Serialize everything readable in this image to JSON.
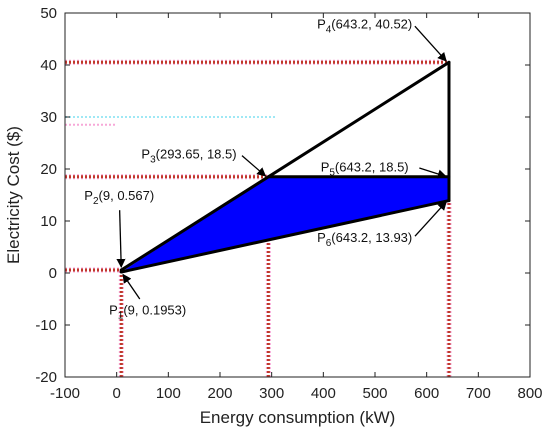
{
  "chart_data": {
    "type": "line",
    "xlabel": "Energy consumption (kW)",
    "ylabel": "Electricity Cost ($)",
    "xlim": [
      -100,
      800
    ],
    "ylim": [
      -20,
      50
    ],
    "xticks": [
      -100,
      0,
      100,
      200,
      300,
      400,
      500,
      600,
      700,
      800
    ],
    "yticks": [
      -20,
      -10,
      0,
      10,
      20,
      30,
      40,
      50
    ],
    "xtick_labels": [
      "-100",
      "0",
      "100",
      "200",
      "300",
      "400",
      "500",
      "600",
      "700",
      "800"
    ],
    "ytick_labels": [
      "-20",
      "-10",
      "0",
      "10",
      "20",
      "30",
      "40",
      "50"
    ],
    "grid": false,
    "colors": {
      "fill": "#0000ff",
      "outline": "#000000",
      "guide": "#c0392b",
      "guide_light": "#f7a8d8",
      "guide_cyan": "#9fe8f5"
    },
    "points": [
      {
        "id": "P1",
        "letter": "P",
        "sub": "1",
        "coords": "(9, 0.1953)",
        "x": 9,
        "y": 0.1953
      },
      {
        "id": "P2",
        "letter": "P",
        "sub": "2",
        "coords": "(9, 0.567)",
        "x": 9,
        "y": 0.567
      },
      {
        "id": "P3",
        "letter": "P",
        "sub": "3",
        "coords": "(293.65, 18.5)",
        "x": 293.65,
        "y": 18.5
      },
      {
        "id": "P4",
        "letter": "P",
        "sub": "4",
        "coords": "(643.2, 40.52)",
        "x": 643.2,
        "y": 40.52
      },
      {
        "id": "P5",
        "letter": "P",
        "sub": "5",
        "coords": "(643.2, 18.5)",
        "x": 643.2,
        "y": 18.5
      },
      {
        "id": "P6",
        "letter": "P",
        "sub": "6",
        "coords": "(643.2, 13.93)",
        "x": 643.2,
        "y": 13.93
      }
    ],
    "filled_region": [
      "P1",
      "P3",
      "P5",
      "P6"
    ],
    "outline_segments": [
      [
        "P2",
        "P4"
      ],
      [
        "P4",
        "P6"
      ],
      [
        "P3",
        "P5"
      ],
      [
        "P1",
        "P6"
      ],
      [
        "P1",
        "P2"
      ]
    ],
    "annotation_arrows": [
      {
        "point": "P1",
        "label_x": 60,
        "label_y": -8
      },
      {
        "point": "P2",
        "label_x": 5,
        "label_y": 14
      },
      {
        "point": "P3",
        "label_x": 140,
        "label_y": 22
      },
      {
        "point": "P4",
        "label_x": 480,
        "label_y": 47
      },
      {
        "point": "P5",
        "label_x": 480,
        "label_y": 19.5
      },
      {
        "point": "P6",
        "label_x": 480,
        "label_y": 6
      }
    ],
    "guide_lines": [
      {
        "orient": "h",
        "y": 40.52,
        "x_from": -100,
        "x_to": 643.2
      },
      {
        "orient": "h",
        "y": 18.5,
        "x_from": -100,
        "x_to": 293.65
      },
      {
        "orient": "h",
        "y": 0.567,
        "x_from": -100,
        "x_to": 9
      },
      {
        "orient": "v",
        "x": 9,
        "y_from": -20,
        "y_to": 0.567
      },
      {
        "orient": "v",
        "x": 293.65,
        "y_from": -20,
        "y_to": 18.5
      },
      {
        "orient": "v",
        "x": 643.2,
        "y_from": -20,
        "y_to": 13.93
      }
    ]
  }
}
